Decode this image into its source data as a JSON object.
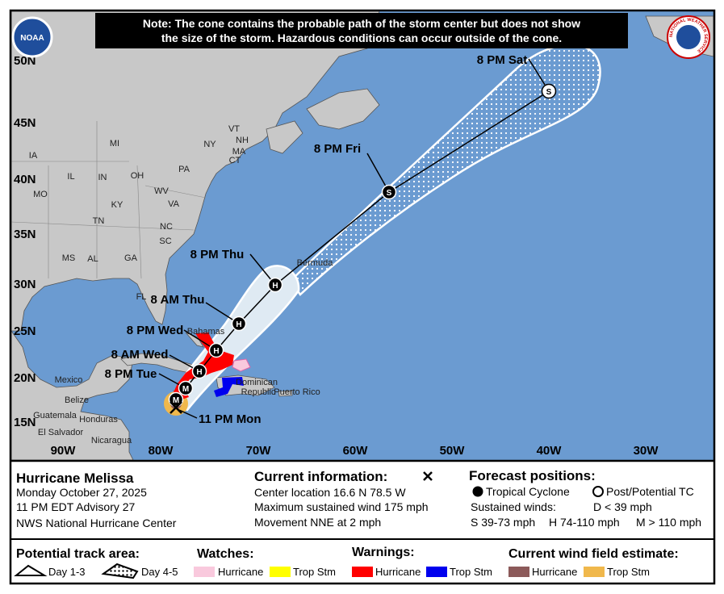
{
  "note": [
    "Note: The cone contains the probable path of the storm center but does not show",
    "the size of the storm. Hazardous conditions can occur outside of the cone."
  ],
  "logos": {
    "noaa": "NOAA",
    "nws": "NATIONAL WEATHER SERVICE"
  },
  "map": {
    "lat_labels": [
      "50N",
      "45N",
      "40N",
      "35N",
      "30N",
      "25N",
      "20N",
      "15N"
    ],
    "lon_labels": [
      "90W",
      "80W",
      "70W",
      "60W",
      "50W",
      "40W",
      "30W"
    ],
    "place_labels": [
      "IA",
      "MI",
      "NY",
      "VT",
      "NH",
      "MA",
      "CT",
      "PA",
      "IL",
      "IN",
      "OH",
      "MO",
      "KY",
      "WV",
      "VA",
      "TN",
      "NC",
      "SC",
      "MS",
      "AL",
      "GA",
      "FL",
      "Mexico",
      "Belize",
      "Guatemala",
      "Honduras",
      "El Salvador",
      "Nicaragua",
      "Dominican",
      "Republic",
      "Puerto Rico",
      "Bermuda",
      "Bahamas"
    ],
    "forecast_labels": [
      "8 PM Sat",
      "8 PM Fri",
      "8 PM Thu",
      "8 AM Thu",
      "8 PM Wed",
      "8 AM Wed",
      "8 PM Tue",
      "11 PM Mon"
    ],
    "markers": [
      "S",
      "S",
      "H",
      "H",
      "H",
      "H",
      "M",
      "M"
    ]
  },
  "info": {
    "storm": "Hurricane Melissa",
    "date": "Monday October 27, 2025",
    "advisory": "11 PM EDT Advisory 27",
    "center": "NWS National Hurricane Center",
    "current_title": "Current information:",
    "current": [
      "Center location 16.6 N 78.5 W",
      "Maximum sustained wind 175 mph",
      "Movement NNE at 2 mph"
    ],
    "forecast_title": "Forecast positions:",
    "tropical_cyclone": "Tropical Cyclone",
    "post_tc": "Post/Potential TC",
    "sustained": "Sustained winds:",
    "d": "D < 39 mph",
    "s": "S 39-73 mph",
    "h": "H 74-110 mph",
    "m": "M > 110 mph"
  },
  "legend": {
    "track_title": "Potential track area:",
    "day13": "Day 1-3",
    "day45": "Day 4-5",
    "watches_title": "Watches:",
    "watch_hurricane": "Hurricane",
    "watch_ts": "Trop Stm",
    "warnings_title": "Warnings:",
    "warning_hurricane": "Hurricane",
    "warning_ts": "Trop Stm",
    "wind_title": "Current wind field estimate:",
    "wind_hurricane": "Hurricane",
    "wind_ts": "Trop Stm"
  }
}
